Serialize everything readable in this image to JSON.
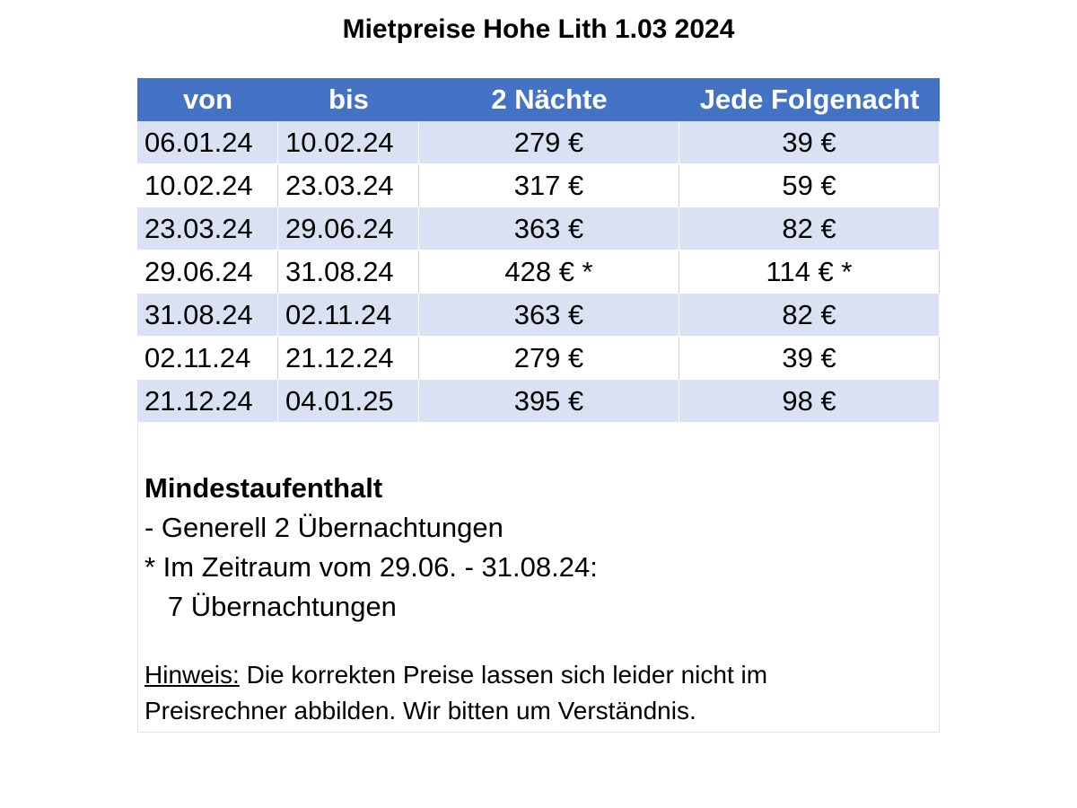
{
  "title": "Mietpreise Hohe Lith 1.03 2024",
  "table": {
    "header": [
      "von",
      "bis",
      "2 Nächte",
      "Jede Folgenacht"
    ],
    "rows": [
      [
        "06.01.24",
        "10.02.24",
        "279 €",
        "39 €"
      ],
      [
        "10.02.24",
        "23.03.24",
        "317 €",
        "59 €"
      ],
      [
        "23.03.24",
        "29.06.24",
        "363 €",
        "82 €"
      ],
      [
        "29.06.24",
        "31.08.24",
        "428 € *",
        "114 € *"
      ],
      [
        "31.08.24",
        "02.11.24",
        "363 €",
        "82 €"
      ],
      [
        "02.11.24",
        "21.12.24",
        "279 €",
        "39 €"
      ],
      [
        "21.12.24",
        "04.01.25",
        "395 €",
        "98 €"
      ]
    ]
  },
  "notes": {
    "heading": "Mindestaufenthalt",
    "lines": [
      "- Generell 2 Übernachtungen",
      "* Im Zeitraum vom 29.06. - 31.08.24:",
      "   7 Übernachtungen"
    ],
    "hint_label": "Hinweis:",
    "hint_lines": [
      "Die korrekten Preise lassen sich leider nicht im",
      "Preisrechner abbilden. Wir bitten um Verständnis."
    ]
  }
}
